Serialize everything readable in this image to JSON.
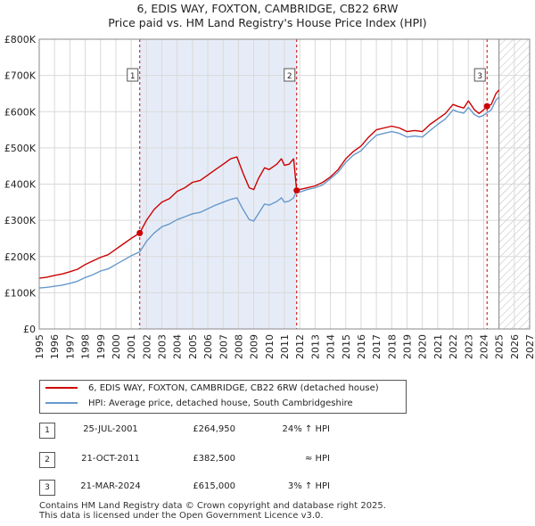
{
  "header": {
    "title_line1": "6, EDIS WAY, FOXTON, CAMBRIDGE, CB22 6RW",
    "title_line2": "Price paid vs. HM Land Registry's House Price Index (HPI)"
  },
  "legend": {
    "property_label": "6, EDIS WAY, FOXTON, CAMBRIDGE, CB22 6RW (detached house)",
    "hpi_label": "HPI: Average price, detached house, South Cambridgeshire"
  },
  "sales": [
    {
      "num": "1",
      "date": "25-JUL-2001",
      "price": "£264,950",
      "rel": "24% ↑ HPI"
    },
    {
      "num": "2",
      "date": "21-OCT-2011",
      "price": "£382,500",
      "rel": "≈ HPI"
    },
    {
      "num": "3",
      "date": "21-MAR-2024",
      "price": "£615,000",
      "rel": "3% ↑ HPI"
    }
  ],
  "footer": {
    "line1": "Contains HM Land Registry data © Crown copyright and database right 2025.",
    "line2": "This data is licensed under the Open Government Licence v3.0."
  },
  "colors": {
    "property": "#cc0000",
    "hpi": "#6699cc",
    "shade": "#e6ecf7",
    "grid": "#d9d9d9",
    "marker": "#cc0000"
  },
  "chart_data": {
    "type": "line",
    "title": "6, EDIS WAY, FOXTON, CAMBRIDGE, CB22 6RW",
    "subtitle": "Price paid vs. HM Land Registry's House Price Index (HPI)",
    "xlabel": "",
    "ylabel": "",
    "xlim": [
      1995,
      2027
    ],
    "ylim": [
      0,
      800000
    ],
    "x_ticks": [
      1995,
      1996,
      1997,
      1998,
      1999,
      2000,
      2001,
      2002,
      2003,
      2004,
      2005,
      2006,
      2007,
      2008,
      2009,
      2010,
      2011,
      2012,
      2013,
      2014,
      2015,
      2016,
      2017,
      2018,
      2019,
      2020,
      2021,
      2022,
      2023,
      2024,
      2025,
      2026,
      2027
    ],
    "y_ticks": [
      {
        "value": 0,
        "label": "£0"
      },
      {
        "value": 100000,
        "label": "£100K"
      },
      {
        "value": 200000,
        "label": "£200K"
      },
      {
        "value": 300000,
        "label": "£300K"
      },
      {
        "value": 400000,
        "label": "£400K"
      },
      {
        "value": 500000,
        "label": "£500K"
      },
      {
        "value": 600000,
        "label": "£600K"
      },
      {
        "value": 700000,
        "label": "£700K"
      },
      {
        "value": 800000,
        "label": "£800K"
      }
    ],
    "grid": true,
    "shaded_period": {
      "start": 2001.56,
      "end": 2011.8
    },
    "forecast_hatch_start": 2025.0,
    "sale_markers": [
      {
        "label": "1",
        "x": 2001.56,
        "y": 264950
      },
      {
        "label": "2",
        "x": 2011.8,
        "y": 382500
      },
      {
        "label": "3",
        "x": 2024.22,
        "y": 615000
      }
    ],
    "series": [
      {
        "name": "6, EDIS WAY, FOXTON, CAMBRIDGE, CB22 6RW (detached house)",
        "x": [
          1995.0,
          1995.5,
          1996.0,
          1996.5,
          1997.0,
          1997.5,
          1998.0,
          1998.5,
          1999.0,
          1999.5,
          2000.0,
          2000.5,
          2001.0,
          2001.56,
          2002.0,
          2002.5,
          2003.0,
          2003.5,
          2004.0,
          2004.5,
          2005.0,
          2005.5,
          2006.0,
          2006.5,
          2007.0,
          2007.5,
          2007.9,
          2008.3,
          2008.7,
          2009.0,
          2009.3,
          2009.7,
          2010.0,
          2010.5,
          2010.8,
          2011.0,
          2011.3,
          2011.6,
          2011.8,
          2012.0,
          2012.5,
          2013.0,
          2013.5,
          2014.0,
          2014.5,
          2015.0,
          2015.5,
          2016.0,
          2016.5,
          2017.0,
          2017.5,
          2018.0,
          2018.5,
          2019.0,
          2019.5,
          2020.0,
          2020.5,
          2021.0,
          2021.5,
          2022.0,
          2022.3,
          2022.7,
          2023.0,
          2023.4,
          2023.7,
          2024.0,
          2024.22,
          2024.5,
          2024.8,
          2025.0
        ],
        "y": [
          140000,
          143000,
          148000,
          152000,
          158000,
          165000,
          178000,
          188000,
          198000,
          205000,
          220000,
          235000,
          250000,
          264950,
          300000,
          330000,
          350000,
          360000,
          380000,
          390000,
          405000,
          410000,
          425000,
          440000,
          455000,
          470000,
          475000,
          430000,
          390000,
          385000,
          415000,
          445000,
          440000,
          455000,
          470000,
          452000,
          455000,
          470000,
          382500,
          385000,
          390000,
          395000,
          405000,
          420000,
          440000,
          470000,
          490000,
          505000,
          530000,
          550000,
          555000,
          560000,
          555000,
          545000,
          548000,
          545000,
          565000,
          580000,
          595000,
          620000,
          615000,
          610000,
          630000,
          605000,
          595000,
          605000,
          615000,
          620000,
          650000,
          660000
        ]
      },
      {
        "name": "HPI: Average price, detached house, South Cambridgeshire",
        "x": [
          1995.0,
          1995.5,
          1996.0,
          1996.5,
          1997.0,
          1997.5,
          1998.0,
          1998.5,
          1999.0,
          1999.5,
          2000.0,
          2000.5,
          2001.0,
          2001.56,
          2002.0,
          2002.5,
          2003.0,
          2003.5,
          2004.0,
          2004.5,
          2005.0,
          2005.5,
          2006.0,
          2006.5,
          2007.0,
          2007.5,
          2007.9,
          2008.3,
          2008.7,
          2009.0,
          2009.3,
          2009.7,
          2010.0,
          2010.5,
          2010.8,
          2011.0,
          2011.3,
          2011.6,
          2011.8,
          2012.0,
          2012.5,
          2013.0,
          2013.5,
          2014.0,
          2014.5,
          2015.0,
          2015.5,
          2016.0,
          2016.5,
          2017.0,
          2017.5,
          2018.0,
          2018.5,
          2019.0,
          2019.5,
          2020.0,
          2020.5,
          2021.0,
          2021.5,
          2022.0,
          2022.3,
          2022.7,
          2023.0,
          2023.4,
          2023.7,
          2024.0,
          2024.22,
          2024.5,
          2024.8,
          2025.0
        ],
        "y": [
          113000,
          115000,
          118000,
          121000,
          126000,
          132000,
          142000,
          150000,
          160000,
          166000,
          178000,
          190000,
          202000,
          213000,
          242000,
          265000,
          282000,
          290000,
          302000,
          310000,
          318000,
          322000,
          332000,
          342000,
          350000,
          358000,
          362000,
          330000,
          302000,
          298000,
          318000,
          345000,
          342000,
          352000,
          362000,
          350000,
          353000,
          362000,
          382000,
          378000,
          385000,
          390000,
          398000,
          415000,
          433000,
          460000,
          480000,
          492000,
          515000,
          535000,
          540000,
          545000,
          540000,
          530000,
          533000,
          530000,
          548000,
          565000,
          580000,
          605000,
          600000,
          596000,
          612000,
          592000,
          585000,
          590000,
          597000,
          605000,
          632000,
          640000
        ]
      }
    ]
  }
}
